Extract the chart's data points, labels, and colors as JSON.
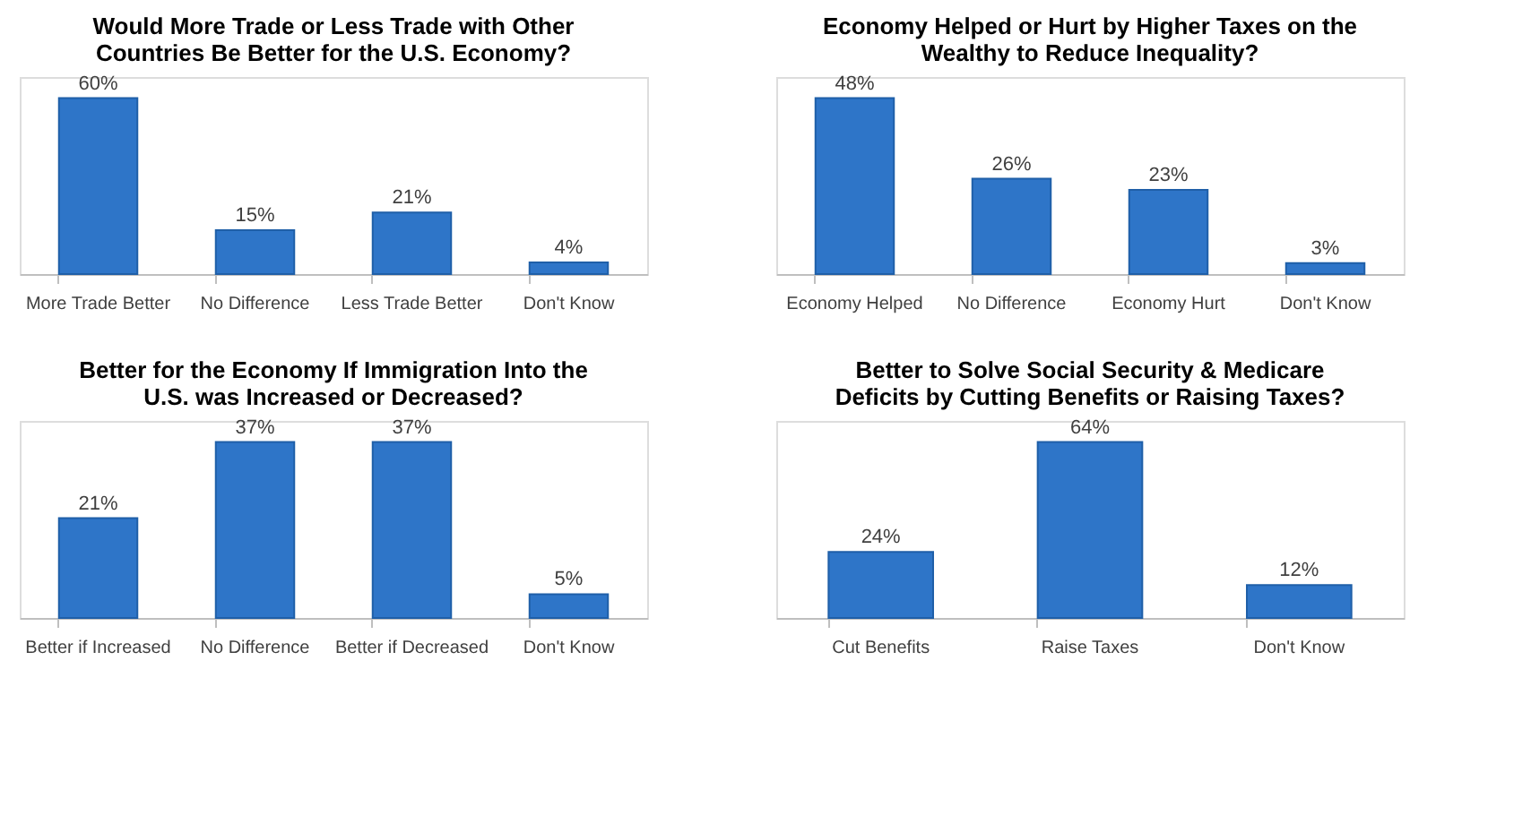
{
  "chart_data": [
    {
      "type": "bar",
      "title": "Would More Trade or Less Trade with Other Countries Be Better for the U.S. Economy?",
      "categories": [
        "More Trade Better",
        "No Difference",
        "Less Trade Better",
        "Don't Know"
      ],
      "values": [
        60,
        15,
        21,
        4
      ],
      "value_labels": [
        "60%",
        "15%",
        "21%",
        "4%"
      ],
      "color": "#2e75c8"
    },
    {
      "type": "bar",
      "title": "Economy Helped or Hurt by Higher Taxes on the Wealthy to Reduce Inequality?",
      "categories": [
        "Economy Helped",
        "No Difference",
        "Economy Hurt",
        "Don't Know"
      ],
      "values": [
        48,
        26,
        23,
        3
      ],
      "value_labels": [
        "48%",
        "26%",
        "23%",
        "3%"
      ],
      "color": "#2e75c8"
    },
    {
      "type": "bar",
      "title": "Better for the Economy If Immigration Into the U.S. was Increased or Decreased?",
      "categories": [
        "Better if Increased",
        "No Difference",
        "Better if Decreased",
        "Don't Know"
      ],
      "values": [
        21,
        37,
        37,
        5
      ],
      "value_labels": [
        "21%",
        "37%",
        "37%",
        "5%"
      ],
      "color": "#2e75c8"
    },
    {
      "type": "bar",
      "title": "Better to Solve Social Security & Medicare Deficits by Cutting Benefits or Raising Taxes?",
      "categories": [
        "Cut Benefits",
        "Raise Taxes",
        "Don't Know"
      ],
      "values": [
        24,
        64,
        12
      ],
      "value_labels": [
        "24%",
        "64%",
        "12%"
      ],
      "color": "#2e75c8"
    }
  ]
}
